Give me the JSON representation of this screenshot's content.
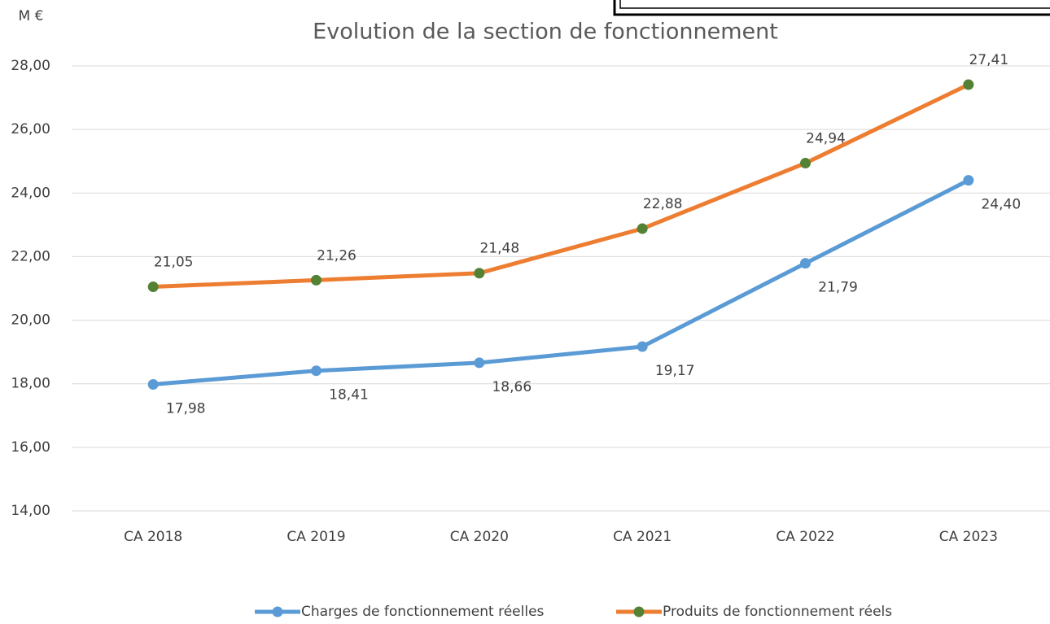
{
  "chart_data": {
    "type": "line",
    "title": "Evolution de la section de fonctionnement",
    "y_label": "M €",
    "categories": [
      "CA 2018",
      "CA 2019",
      "CA 2020",
      "CA 2021",
      "CA 2022",
      "CA 2023"
    ],
    "series": [
      {
        "name": "Charges de fonctionnement réelles",
        "color": "#5b9bd5",
        "marker_color": "#5b9bd5",
        "values": [
          17.98,
          18.41,
          18.66,
          19.17,
          21.79,
          24.4
        ],
        "value_labels": [
          "17,98",
          "18,41",
          "18,66",
          "19,17",
          "21,79",
          "24,40"
        ]
      },
      {
        "name": "Produits de fonctionnement réels",
        "color": "#ed7d31",
        "marker_color": "#548235",
        "values": [
          21.05,
          21.26,
          21.48,
          22.88,
          24.94,
          27.41
        ],
        "value_labels": [
          "21,05",
          "21,26",
          "21,48",
          "22,88",
          "24,94",
          "27,41"
        ]
      }
    ],
    "ylim": [
      14,
      28
    ],
    "yticks": [
      {
        "value": 14,
        "label": "14,00"
      },
      {
        "value": 16,
        "label": "16,00"
      },
      {
        "value": 18,
        "label": "18,00"
      },
      {
        "value": 20,
        "label": "20,00"
      },
      {
        "value": 22,
        "label": "22,00"
      },
      {
        "value": 24,
        "label": "24,00"
      },
      {
        "value": 26,
        "label": "26,00"
      },
      {
        "value": 28,
        "label": "28,00"
      }
    ],
    "grid": true,
    "legend": "bottom"
  }
}
